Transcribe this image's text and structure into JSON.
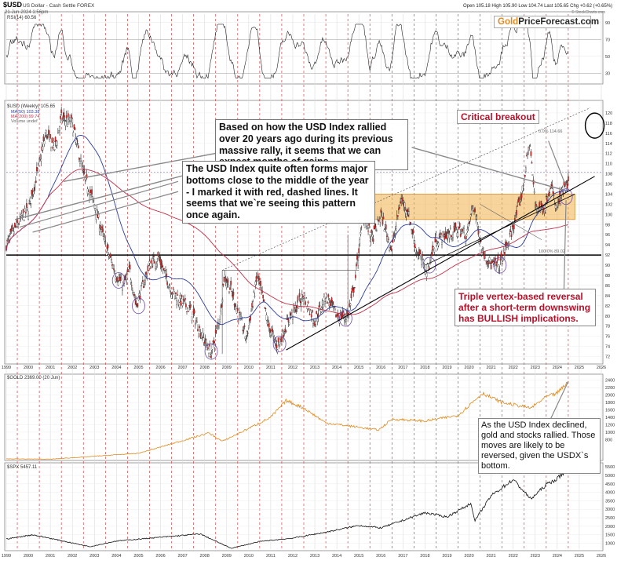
{
  "header": {
    "symbol": "$USD",
    "name": "US Dollar - Cash Settle FOREX",
    "date": "21-Jun-2024 1:56pm",
    "ohlc": "Open 105.18  High 105.90  Low 104.74  Last 105.65  Chg +0.62 (+0.65%)",
    "credit": "© StockCharts.com"
  },
  "brand": {
    "part1": "Gold",
    "part2": "PriceForecast.com"
  },
  "annotations": {
    "rally": "Based on how the USD Index rallied over 20 years ago during its previous massive rally, it seems that we can expect months of gains.",
    "bottoms": "The USD Index quite often forms major bottoms close to the middle of the year - I marked it with red, dashed lines. It seems that we`re seeing this pattern once again.",
    "critical": "Critical breakout",
    "triple": "Triple vertex-based reversal after a short-term downswing has BULLISH implications.",
    "gold_stocks": "As the USD Index declined, gold and stocks rallied. Those moves are likely to be reversed, given the USDX`s bottom."
  },
  "colors": {
    "red_note": "#b3122a",
    "gold_line": "#e08a1e",
    "zone": "#f0b048",
    "ma50": "#2b3d9e",
    "ma200": "#c0304a"
  },
  "chart_data": [
    {
      "type": "line",
      "panel": "rsi",
      "title": "RSI(14) 60.56",
      "y_ticks": [
        30,
        50,
        70,
        90
      ],
      "ylim": [
        20,
        100
      ]
    },
    {
      "type": "candlestick",
      "panel": "usd",
      "title": "$USD (Weekly) 105.65",
      "legend": [
        "MA(50) 103.38",
        "MA(200) 99.74",
        "Volume undef"
      ],
      "x_years": [
        "1999",
        "2000",
        "2001",
        "2002",
        "2003",
        "2004",
        "2005",
        "2006",
        "2007",
        "2008",
        "2009",
        "2010",
        "2011",
        "2012",
        "2013",
        "2014",
        "2015",
        "2016",
        "2017",
        "2018",
        "2019",
        "2020",
        "2021",
        "2022",
        "2023",
        "2024",
        "2025",
        "2026"
      ],
      "y_ticks": [
        72,
        74,
        76,
        78,
        80,
        82,
        84,
        86,
        88,
        90,
        92,
        94,
        96,
        98,
        100,
        102,
        104,
        106,
        108,
        110,
        112,
        114,
        116,
        118,
        120
      ],
      "ylim": [
        71,
        122
      ],
      "xlim": [
        1999,
        2026
      ],
      "support_level": 92,
      "zone": [
        99,
        104
      ],
      "fib_labels": [
        "0.0%  114.66",
        "100.0%  89.02"
      ],
      "series": [
        {
          "name": "USD Index",
          "points": [
            [
              1999.0,
              94
            ],
            [
              1999.5,
              98
            ],
            [
              2000.0,
              101
            ],
            [
              2000.4,
              108
            ],
            [
              2000.8,
              116
            ],
            [
              2001.2,
              113
            ],
            [
              2001.5,
              119
            ],
            [
              2002.0,
              118
            ],
            [
              2002.5,
              108
            ],
            [
              2003.0,
              102
            ],
            [
              2003.5,
              94
            ],
            [
              2004.0,
              88
            ],
            [
              2004.3,
              86
            ],
            [
              2004.6,
              89
            ],
            [
              2004.9,
              82
            ],
            [
              2005.5,
              90
            ],
            [
              2005.9,
              91.5
            ],
            [
              2006.5,
              85
            ],
            [
              2006.9,
              83
            ],
            [
              2007.4,
              81
            ],
            [
              2007.9,
              76
            ],
            [
              2008.3,
              72.5
            ],
            [
              2008.7,
              80
            ],
            [
              2008.9,
              88
            ],
            [
              2009.2,
              85
            ],
            [
              2009.9,
              75.5
            ],
            [
              2010.4,
              88
            ],
            [
              2010.9,
              78
            ],
            [
              2011.3,
              74
            ],
            [
              2011.9,
              80
            ],
            [
              2012.5,
              84
            ],
            [
              2013.0,
              79
            ],
            [
              2013.5,
              84
            ],
            [
              2014.0,
              80
            ],
            [
              2014.5,
              80
            ],
            [
              2014.8,
              86
            ],
            [
              2015.2,
              100
            ],
            [
              2015.6,
              95
            ],
            [
              2016.0,
              100
            ],
            [
              2016.5,
              93
            ],
            [
              2016.9,
              103
            ],
            [
              2017.2,
              101
            ],
            [
              2017.6,
              93
            ],
            [
              2018.1,
              89
            ],
            [
              2018.5,
              95
            ],
            [
              2019.0,
              96
            ],
            [
              2019.5,
              97
            ],
            [
              2019.9,
              96
            ],
            [
              2020.2,
              102
            ],
            [
              2020.6,
              93
            ],
            [
              2021.0,
              90
            ],
            [
              2021.4,
              90
            ],
            [
              2021.9,
              96
            ],
            [
              2022.4,
              104
            ],
            [
              2022.75,
              114.5
            ],
            [
              2023.0,
              102
            ],
            [
              2023.4,
              101
            ],
            [
              2023.7,
              106
            ],
            [
              2023.95,
              101
            ],
            [
              2024.3,
              105
            ],
            [
              2024.5,
              105.6
            ]
          ]
        }
      ]
    },
    {
      "type": "line",
      "panel": "gold",
      "title": "$GOLD 2369.00 (20 Jun)",
      "y_ticks": [
        800,
        1000,
        1200,
        1400,
        1600,
        1800,
        2000,
        2200,
        2400
      ],
      "ylim": [
        300,
        2500
      ],
      "series": [
        {
          "name": "Gold",
          "points": [
            [
              1999.0,
              280
            ],
            [
              2001.0,
              270
            ],
            [
              2003.0,
              350
            ],
            [
              2005.0,
              430
            ],
            [
              2006.3,
              650
            ],
            [
              2008.2,
              980
            ],
            [
              2008.8,
              750
            ],
            [
              2010.0,
              1100
            ],
            [
              2011.0,
              1400
            ],
            [
              2011.7,
              1850
            ],
            [
              2012.5,
              1650
            ],
            [
              2013.5,
              1250
            ],
            [
              2015.9,
              1060
            ],
            [
              2016.5,
              1350
            ],
            [
              2018.0,
              1300
            ],
            [
              2019.5,
              1450
            ],
            [
              2020.6,
              2050
            ],
            [
              2021.5,
              1800
            ],
            [
              2022.8,
              1650
            ],
            [
              2023.5,
              1950
            ],
            [
              2024.0,
              2050
            ],
            [
              2024.5,
              2369
            ]
          ]
        }
      ]
    },
    {
      "type": "line",
      "panel": "spx",
      "title": "$SPX 5457.11",
      "y_ticks": [
        1000,
        1500,
        2000,
        2500,
        3000,
        3500,
        4000,
        4500,
        5000,
        5500
      ],
      "ylim": [
        700,
        5600
      ],
      "series": [
        {
          "name": "S&P 500",
          "points": [
            [
              1999.0,
              1250
            ],
            [
              2000.2,
              1500
            ],
            [
              2001.5,
              1150
            ],
            [
              2002.8,
              800
            ],
            [
              2004.0,
              1130
            ],
            [
              2007.8,
              1550
            ],
            [
              2009.2,
              700
            ],
            [
              2010.5,
              1100
            ],
            [
              2012.0,
              1300
            ],
            [
              2013.5,
              1650
            ],
            [
              2015.0,
              2050
            ],
            [
              2016.0,
              1900
            ],
            [
              2018.0,
              2800
            ],
            [
              2019.0,
              2550
            ],
            [
              2020.1,
              3350
            ],
            [
              2020.25,
              2300
            ],
            [
              2021.0,
              3800
            ],
            [
              2022.0,
              4750
            ],
            [
              2022.8,
              3600
            ],
            [
              2023.5,
              4450
            ],
            [
              2024.0,
              4800
            ],
            [
              2024.5,
              5457
            ]
          ]
        }
      ]
    }
  ]
}
